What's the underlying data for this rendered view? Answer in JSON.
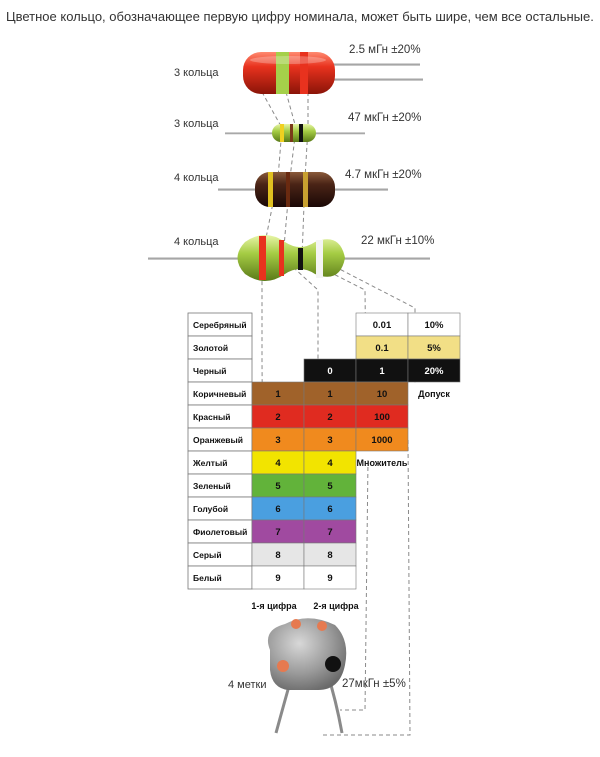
{
  "caption": "Цветное кольцо, обозначающее первую цифру номинала, может быть шире, чем все остальные.",
  "inductors": [
    {
      "rings_label": "3 кольца",
      "value_label": "2.5 мГн ±20%"
    },
    {
      "rings_label": "3 кольца",
      "value_label": "47 мкГн ±20%"
    },
    {
      "rings_label": "4 кольца",
      "value_label": "4.7 мкГн ±20%"
    },
    {
      "rings_label": "4 кольца",
      "value_label": "22 мкГн ±10%"
    }
  ],
  "colors": {
    "silver": "#ffffff",
    "gold": "#f2df86",
    "black": "#111111",
    "brown": "#a0622a",
    "red": "#e02b20",
    "orange": "#f08a1e",
    "yellow": "#f2e400",
    "green": "#62b33a",
    "blue": "#4a9fe0",
    "violet": "#a04aa0",
    "grey": "#e6e6e6",
    "white": "#ffffff"
  },
  "table": {
    "rows": [
      {
        "name": "Серебряный",
        "color_key": "silver",
        "d1": "",
        "d2": "",
        "mult": "0.01",
        "tol": "10%"
      },
      {
        "name": "Золотой",
        "color_key": "gold",
        "d1": "",
        "d2": "",
        "mult": "0.1",
        "tol": "5%"
      },
      {
        "name": "Черный",
        "color_key": "black",
        "d1": "",
        "d2": "0",
        "mult": "1",
        "tol": "20%"
      },
      {
        "name": "Коричневый",
        "color_key": "brown",
        "d1": "1",
        "d2": "1",
        "mult": "10",
        "tol": ""
      },
      {
        "name": "Красный",
        "color_key": "red",
        "d1": "2",
        "d2": "2",
        "mult": "100",
        "tol": ""
      },
      {
        "name": "Оранжевый",
        "color_key": "orange",
        "d1": "3",
        "d2": "3",
        "mult": "1000",
        "tol": ""
      },
      {
        "name": "Желтый",
        "color_key": "yellow",
        "d1": "4",
        "d2": "4",
        "mult": "",
        "tol": ""
      },
      {
        "name": "Зеленый",
        "color_key": "green",
        "d1": "5",
        "d2": "5",
        "mult": "",
        "tol": ""
      },
      {
        "name": "Голубой",
        "color_key": "blue",
        "d1": "6",
        "d2": "6",
        "mult": "",
        "tol": ""
      },
      {
        "name": "Фиолетовый",
        "color_key": "violet",
        "d1": "7",
        "d2": "7",
        "mult": "",
        "tol": ""
      },
      {
        "name": "Серый",
        "color_key": "grey",
        "d1": "8",
        "d2": "8",
        "mult": "",
        "tol": ""
      },
      {
        "name": "Белый",
        "color_key": "white",
        "d1": "9",
        "d2": "9",
        "mult": "",
        "tol": ""
      }
    ],
    "tolerance_label": "Допуск",
    "multiplier_label": "Множитель",
    "digit1_label": "1-я цифра",
    "digit2_label": "2-я цифра"
  },
  "capacitor": {
    "marks_label": "4 метки",
    "value_label": "27мкГн ±5%"
  }
}
